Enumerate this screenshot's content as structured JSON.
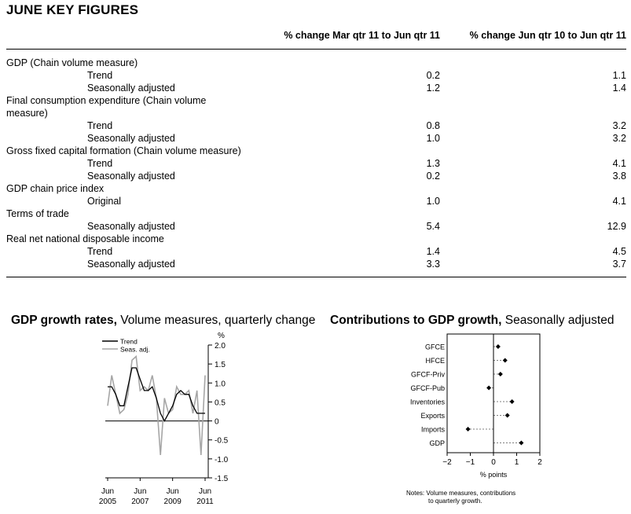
{
  "title": "JUNE KEY FIGURES",
  "columns": [
    "% change Mar qtr 11 to Jun qtr 11",
    "% change Jun qtr 10 to Jun qtr 11"
  ],
  "rows": [
    {
      "label": "GDP (Chain volume measure)",
      "indent": false,
      "v1": "",
      "v2": ""
    },
    {
      "label": "Trend",
      "indent": true,
      "v1": "0.2",
      "v2": "1.1"
    },
    {
      "label": "Seasonally adjusted",
      "indent": true,
      "v1": "1.2",
      "v2": "1.4"
    },
    {
      "label": "Final consumption expenditure (Chain volume",
      "indent": false,
      "v1": "",
      "v2": ""
    },
    {
      "label": "measure)",
      "indent": false,
      "v1": "",
      "v2": ""
    },
    {
      "label": "Trend",
      "indent": true,
      "v1": "0.8",
      "v2": "3.2"
    },
    {
      "label": "Seasonally adjusted",
      "indent": true,
      "v1": "1.0",
      "v2": "3.2"
    },
    {
      "label": "Gross fixed capital formation (Chain volume measure)",
      "indent": false,
      "v1": "",
      "v2": ""
    },
    {
      "label": "Trend",
      "indent": true,
      "v1": "1.3",
      "v2": "4.1"
    },
    {
      "label": "Seasonally adjusted",
      "indent": true,
      "v1": "0.2",
      "v2": "3.8"
    },
    {
      "label": "GDP chain price index",
      "indent": false,
      "v1": "",
      "v2": ""
    },
    {
      "label": "Original",
      "indent": true,
      "v1": "1.0",
      "v2": "4.1"
    },
    {
      "label": "Terms of trade",
      "indent": false,
      "v1": "",
      "v2": ""
    },
    {
      "label": "Seasonally adjusted",
      "indent": true,
      "v1": "5.4",
      "v2": "12.9"
    },
    {
      "label": "Real net national disposable income",
      "indent": false,
      "v1": "",
      "v2": ""
    },
    {
      "label": "Trend",
      "indent": true,
      "v1": "1.4",
      "v2": "4.5"
    },
    {
      "label": "Seasonally adjusted",
      "indent": true,
      "v1": "3.3",
      "v2": "3.7"
    }
  ],
  "chart_data": [
    {
      "type": "line",
      "title": "GDP growth rates,",
      "subtitle": "Volume measures, quarterly change",
      "ylabel": "%",
      "ylim": [
        -1.5,
        2.0
      ],
      "yticks": [
        "2.0",
        "1.5",
        "1.0",
        "0.5",
        "0",
        "-0.5",
        "-1.0",
        "-1.5"
      ],
      "xticks": [
        {
          "month": "Jun",
          "year": "2005"
        },
        {
          "month": "Jun",
          "year": "2007"
        },
        {
          "month": "Jun",
          "year": "2009"
        },
        {
          "month": "Jun",
          "year": "2011"
        }
      ],
      "legend": [
        "Trend",
        "Seas. adj."
      ],
      "legend_position": "top-left",
      "series": [
        {
          "name": "Trend",
          "color": "#000000",
          "values": [
            0.9,
            0.9,
            0.7,
            0.4,
            0.4,
            0.9,
            1.4,
            1.4,
            1.1,
            0.8,
            0.8,
            0.9,
            0.6,
            0.2,
            0.0,
            0.2,
            0.4,
            0.7,
            0.8,
            0.7,
            0.7,
            0.4,
            0.2,
            0.2,
            0.2
          ]
        },
        {
          "name": "Seas. adj.",
          "color": "#a6a6a6",
          "values": [
            0.4,
            1.2,
            0.7,
            0.2,
            0.3,
            0.7,
            1.6,
            1.7,
            0.8,
            0.9,
            0.8,
            1.2,
            0.6,
            -0.9,
            0.6,
            0.2,
            0.3,
            0.9,
            0.7,
            0.7,
            0.8,
            0.2,
            0.8,
            -0.9,
            1.2
          ]
        }
      ]
    },
    {
      "type": "scatter",
      "title": "Contributions to GDP growth,",
      "subtitle": "Seasonally adjusted",
      "xlabel": "% points",
      "xlim": [
        -2,
        2
      ],
      "xticks": [
        "−2",
        "−1",
        "0",
        "1",
        "2"
      ],
      "categories": [
        "GFCE",
        "HFCE",
        "GFCF-Priv",
        "GFCF-Pub",
        "Inventories",
        "Exports",
        "Imports",
        "GDP"
      ],
      "values": [
        0.2,
        0.5,
        0.3,
        -0.2,
        0.8,
        0.6,
        -1.1,
        1.2
      ],
      "notes": [
        "Notes: Volume measures, contributions",
        "to quarterly growth."
      ]
    }
  ]
}
